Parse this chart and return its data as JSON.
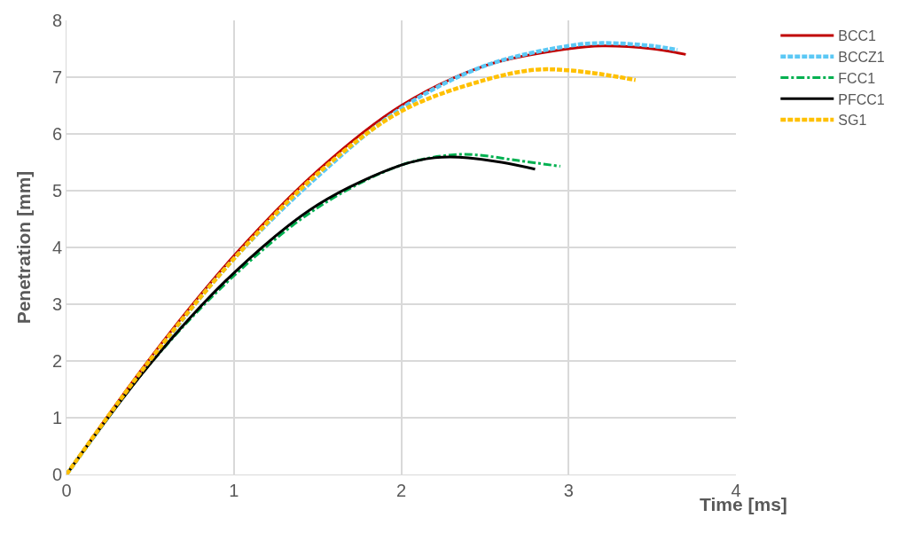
{
  "chart_data": {
    "type": "line",
    "xlabel": "Time [ms]",
    "ylabel": "Penetration [mm]",
    "xlim": [
      0,
      4
    ],
    "xticks": [
      0,
      1,
      2,
      3,
      4
    ],
    "ylim": [
      0,
      8
    ],
    "yticks": [
      0,
      1,
      2,
      3,
      4,
      5,
      6,
      7,
      8
    ],
    "grid": true,
    "legend": "right",
    "marker": "none",
    "series": [
      {
        "name": "BCC1",
        "color": "#c00000",
        "line_style": "solid",
        "x": [
          0,
          0.5,
          1,
          1.5,
          2,
          2.5,
          3,
          3.2,
          3.5,
          3.7
        ],
        "values": [
          0,
          2.05,
          3.85,
          5.35,
          6.5,
          7.2,
          7.5,
          7.55,
          7.5,
          7.4
        ]
      },
      {
        "name": "BCCZ1",
        "color": "#5bc8f5",
        "line_style": "dashed",
        "x": [
          0,
          0.5,
          1,
          1.5,
          2,
          2.5,
          3,
          3.2,
          3.5,
          3.65
        ],
        "values": [
          0,
          2.0,
          3.8,
          5.25,
          6.45,
          7.2,
          7.55,
          7.6,
          7.55,
          7.48
        ]
      },
      {
        "name": "FCC1",
        "color": "#00b050",
        "line_style": "dashdot",
        "x": [
          0,
          0.5,
          1,
          1.5,
          2,
          2.3,
          2.45,
          2.7,
          2.95
        ],
        "values": [
          0,
          1.95,
          3.5,
          4.7,
          5.45,
          5.63,
          5.63,
          5.53,
          5.43
        ]
      },
      {
        "name": "PFCC1",
        "color": "#000000",
        "line_style": "solid",
        "x": [
          0,
          0.5,
          1,
          1.5,
          2,
          2.2,
          2.4,
          2.6,
          2.8
        ],
        "values": [
          0,
          1.95,
          3.55,
          4.75,
          5.45,
          5.58,
          5.58,
          5.5,
          5.38
        ]
      },
      {
        "name": "SG1",
        "color": "#ffc000",
        "line_style": "dashed",
        "x": [
          0,
          0.5,
          1,
          1.5,
          2,
          2.5,
          2.8,
          3,
          3.2,
          3.4
        ],
        "values": [
          0,
          2.02,
          3.8,
          5.3,
          6.4,
          6.95,
          7.13,
          7.12,
          7.05,
          6.95
        ]
      }
    ]
  }
}
